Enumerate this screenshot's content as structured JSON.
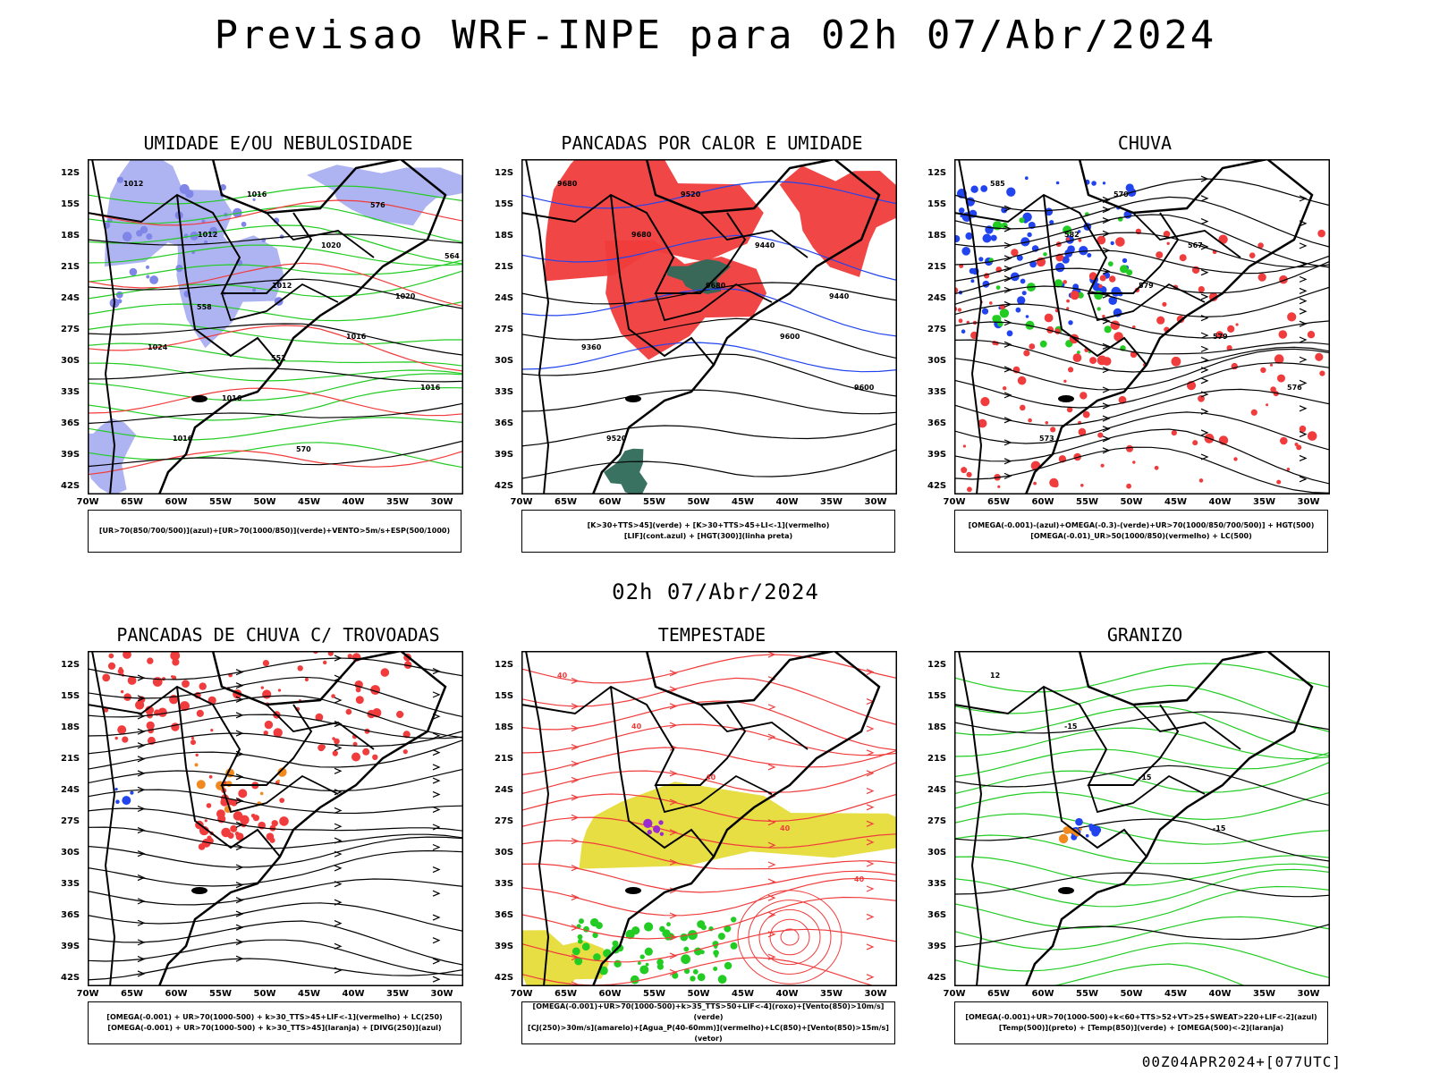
{
  "title": "Previsao WRF-INPE  para 02h 07/Abr/2024",
  "mid_date": "02h 07/Abr/2024",
  "footer": "00Z04APR2024+[077UTC]",
  "lat_labels": [
    "12S",
    "15S",
    "18S",
    "21S",
    "24S",
    "27S",
    "30S",
    "33S",
    "36S",
    "39S",
    "42S"
  ],
  "lon_labels": [
    "70W",
    "65W",
    "60W",
    "55W",
    "50W",
    "45W",
    "40W",
    "35W",
    "30W"
  ],
  "colors": {
    "purple": "#aab0f0",
    "purple_dark": "#7f86e8",
    "green": "#22cc22",
    "red": "#f03c3c",
    "dark_teal": "#2f6a5a",
    "blue": "#2244ee",
    "orange": "#f08a1e",
    "yellow": "#e6dc3a",
    "black": "#000000"
  },
  "panels": [
    {
      "title": "UMIDADE E/OU NEBULOSIDADE",
      "legend": [
        "[UR>70(850/700/500)](azul)+[UR>70(1000/850)](verde)+VENTO>5m/s+ESP(500/1000)"
      ],
      "contour_labels": [
        "1012",
        "1012",
        "1012",
        "1016",
        "1016",
        "1016",
        "1016",
        "1020",
        "1020",
        "1024",
        "1016",
        "570",
        "576",
        "564",
        "558",
        "552"
      ]
    },
    {
      "title": "PANCADAS POR CALOR E UMIDADE",
      "legend": [
        "[K>30+TTS>45](verde) + [K>30+TTS>45+LI<-1](vermelho)",
        "[LIF](cont.azul) + [HGT(300)](linha preta)"
      ],
      "contour_labels": [
        "9680",
        "9680",
        "9680",
        "9600",
        "9600",
        "9520",
        "9520",
        "9440",
        "9440",
        "9360"
      ]
    },
    {
      "title": "CHUVA",
      "legend": [
        "[OMEGA(-0.001)-(azul)+OMEGA(-0.3)-(verde)+UR>70(1000/850/700/500)] + HGT(500)",
        "[OMEGA(-0.01)_UR>50(1000/850)(vermelho) + LC(500)"
      ],
      "contour_labels": [
        "585",
        "582",
        "579",
        "579",
        "576",
        "573",
        "570",
        "567"
      ]
    },
    {
      "title": "PANCADAS DE CHUVA C/ TROVOADAS",
      "legend": [
        "[OMEGA(-0.001) + UR>70(1000-500) + k>30_TTS>45+LIF<-1](vermelho) + LC(250)",
        "[OMEGA(-0.001) + UR>70(1000-500) + k>30_TTS>45](laranja) + [DIVG(250)](azul)"
      ],
      "contour_labels": []
    },
    {
      "title": "TEMPESTADE",
      "legend": [
        "[OMEGA(-0.001)+UR>70(1000-500)+k>35_TTS>50+LIF<-4](roxo)+[Vento(850)>10m/s](verde)",
        "[CJ(250)>30m/s](amarelo)+[Agua_P(40-60mm)](vermelho)+LC(850)+[Vento(850)>15m/s](vetor)"
      ],
      "contour_labels": [
        "40",
        "40",
        "40",
        "40",
        "40"
      ]
    },
    {
      "title": "GRANIZO",
      "legend": [
        "[OMEGA(-0.001)+UR>70(1000-500)+k<60+TTS>52+VT>25+SWEAT>220+LIF<-2](azul)",
        "[Temp(500)](preto) + [Temp(850)](verde) + [OMEGA(500)<-2](laranja)"
      ],
      "contour_labels": [
        "12",
        "-15",
        "-15",
        "-15"
      ]
    }
  ]
}
